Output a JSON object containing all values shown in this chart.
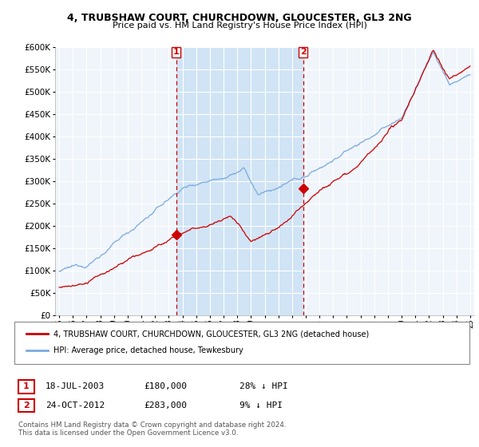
{
  "title1": "4, TRUBSHAW COURT, CHURCHDOWN, GLOUCESTER, GL3 2NG",
  "title2": "Price paid vs. HM Land Registry's House Price Index (HPI)",
  "legend_red": "4, TRUBSHAW COURT, CHURCHDOWN, GLOUCESTER, GL3 2NG (detached house)",
  "legend_blue": "HPI: Average price, detached house, Tewkesbury",
  "sale1_date": "18-JUL-2003",
  "sale1_price": "£180,000",
  "sale1_hpi": "28% ↓ HPI",
  "sale1_year": 2003.54,
  "sale1_value": 180000,
  "sale2_date": "24-OCT-2012",
  "sale2_price": "£283,000",
  "sale2_hpi": "9% ↓ HPI",
  "sale2_year": 2012.81,
  "sale2_value": 283000,
  "footer": "Contains HM Land Registry data © Crown copyright and database right 2024.\nThis data is licensed under the Open Government Licence v3.0.",
  "bg_color": "#f0f5fb",
  "shade_color": "#d0e4f5",
  "red_color": "#cc0000",
  "blue_color": "#7aaadd",
  "ylim": [
    0,
    600000
  ],
  "yticks": [
    0,
    50000,
    100000,
    150000,
    200000,
    250000,
    300000,
    350000,
    400000,
    450000,
    500000,
    550000,
    600000
  ],
  "xlim_start": 1994.7,
  "xlim_end": 2025.3,
  "xticks": [
    1995,
    1996,
    1997,
    1998,
    1999,
    2000,
    2001,
    2002,
    2003,
    2004,
    2005,
    2006,
    2007,
    2008,
    2009,
    2010,
    2011,
    2012,
    2013,
    2014,
    2015,
    2016,
    2017,
    2018,
    2019,
    2020,
    2021,
    2022,
    2023,
    2024,
    2025
  ],
  "xtick_labels": [
    "95",
    "96",
    "97",
    "98",
    "99",
    "00",
    "01",
    "02",
    "03",
    "04",
    "05",
    "06",
    "07",
    "08",
    "09",
    "10",
    "11",
    "12",
    "13",
    "14",
    "15",
    "16",
    "17",
    "18",
    "19",
    "20",
    "21",
    "22",
    "23",
    "24",
    "25"
  ]
}
